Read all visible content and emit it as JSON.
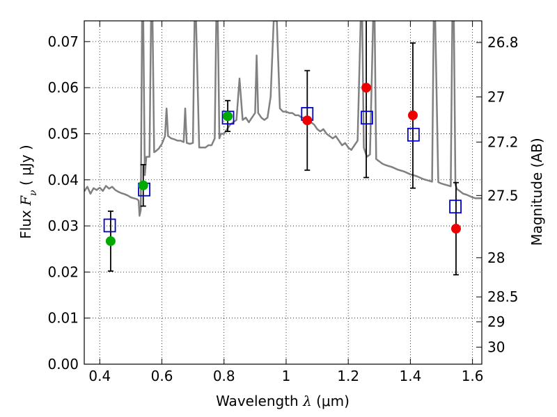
{
  "chart_data": {
    "type": "scatter",
    "title": "",
    "xlabel": {
      "prefix": "Wavelength  ",
      "symbol": "λ",
      "unit": " (μm)"
    },
    "ylabel": {
      "prefix": "Flux  ",
      "symbol": "F",
      "subscript": "ν",
      "unit": "  ( μJy )"
    },
    "y2label": "Magnitude (AB)",
    "xlim": [
      0.35,
      1.63
    ],
    "ylim": [
      0.0,
      0.0745
    ],
    "x_ticks": [
      0.4,
      0.6,
      0.8,
      1.0,
      1.2,
      1.4,
      1.6
    ],
    "x_tick_labels": [
      "0.4",
      "0.6",
      "0.8",
      "1",
      "1.2",
      "1.4",
      "1.6"
    ],
    "y_ticks": [
      0.0,
      0.01,
      0.02,
      0.03,
      0.04,
      0.05,
      0.06,
      0.07
    ],
    "y_tick_labels": [
      "0.00",
      "0.01",
      "0.02",
      "0.03",
      "0.04",
      "0.05",
      "0.06",
      "0.07"
    ],
    "y2_ticks": [
      {
        "label": "26.8",
        "flux": 0.0698
      },
      {
        "label": "27",
        "flux": 0.058
      },
      {
        "label": "27.2",
        "flux": 0.0482
      },
      {
        "label": "27.5",
        "flux": 0.0366
      },
      {
        "label": "28",
        "flux": 0.0231
      },
      {
        "label": "28.5",
        "flux": 0.0146
      },
      {
        "label": "29",
        "flux": 0.0092
      },
      {
        "label": "30",
        "flux": 0.0037
      }
    ],
    "grid": true,
    "series": [
      {
        "kind": "model_spectrum",
        "color": "#808080",
        "points": [
          [
            0.35,
            0.0375
          ],
          [
            0.36,
            0.0385
          ],
          [
            0.37,
            0.037
          ],
          [
            0.38,
            0.0382
          ],
          [
            0.39,
            0.0378
          ],
          [
            0.4,
            0.0383
          ],
          [
            0.41,
            0.0376
          ],
          [
            0.42,
            0.0387
          ],
          [
            0.43,
            0.0381
          ],
          [
            0.44,
            0.0385
          ],
          [
            0.45,
            0.0378
          ],
          [
            0.46,
            0.0374
          ],
          [
            0.47,
            0.0371
          ],
          [
            0.48,
            0.0369
          ],
          [
            0.49,
            0.0366
          ],
          [
            0.5,
            0.0362
          ],
          [
            0.51,
            0.036
          ],
          [
            0.52,
            0.0358
          ],
          [
            0.525,
            0.0355
          ],
          [
            0.528,
            0.0322
          ],
          [
            0.532,
            0.0335
          ],
          [
            0.536,
            0.0745
          ],
          [
            0.54,
            0.0745
          ],
          [
            0.545,
            0.041
          ],
          [
            0.55,
            0.045
          ],
          [
            0.56,
            0.045
          ],
          [
            0.565,
            0.0745
          ],
          [
            0.57,
            0.0745
          ],
          [
            0.575,
            0.046
          ],
          [
            0.58,
            0.0462
          ],
          [
            0.59,
            0.0468
          ],
          [
            0.6,
            0.0478
          ],
          [
            0.61,
            0.0495
          ],
          [
            0.615,
            0.0555
          ],
          [
            0.62,
            0.0495
          ],
          [
            0.63,
            0.049
          ],
          [
            0.64,
            0.0488
          ],
          [
            0.65,
            0.0485
          ],
          [
            0.66,
            0.0485
          ],
          [
            0.67,
            0.0482
          ],
          [
            0.675,
            0.0555
          ],
          [
            0.68,
            0.048
          ],
          [
            0.69,
            0.0478
          ],
          [
            0.7,
            0.048
          ],
          [
            0.705,
            0.0745
          ],
          [
            0.71,
            0.0745
          ],
          [
            0.72,
            0.047
          ],
          [
            0.73,
            0.047
          ],
          [
            0.74,
            0.047
          ],
          [
            0.75,
            0.0475
          ],
          [
            0.76,
            0.0475
          ],
          [
            0.77,
            0.049
          ],
          [
            0.775,
            0.0745
          ],
          [
            0.78,
            0.0745
          ],
          [
            0.785,
            0.049
          ],
          [
            0.79,
            0.05
          ],
          [
            0.8,
            0.05
          ],
          [
            0.81,
            0.051
          ],
          [
            0.82,
            0.052
          ],
          [
            0.83,
            0.0525
          ],
          [
            0.84,
            0.053
          ],
          [
            0.85,
            0.062
          ],
          [
            0.86,
            0.053
          ],
          [
            0.87,
            0.0535
          ],
          [
            0.88,
            0.0525
          ],
          [
            0.89,
            0.0535
          ],
          [
            0.9,
            0.0545
          ],
          [
            0.905,
            0.067
          ],
          [
            0.91,
            0.0545
          ],
          [
            0.92,
            0.0535
          ],
          [
            0.93,
            0.053
          ],
          [
            0.94,
            0.0535
          ],
          [
            0.95,
            0.058
          ],
          [
            0.96,
            0.0745
          ],
          [
            0.97,
            0.0745
          ],
          [
            0.98,
            0.0555
          ],
          [
            0.99,
            0.0548
          ],
          [
            1.0,
            0.0548
          ],
          [
            1.01,
            0.0545
          ],
          [
            1.02,
            0.0545
          ],
          [
            1.03,
            0.054
          ],
          [
            1.04,
            0.054
          ],
          [
            1.05,
            0.0535
          ],
          [
            1.06,
            0.0535
          ],
          [
            1.07,
            0.053
          ],
          [
            1.08,
            0.0525
          ],
          [
            1.09,
            0.052
          ],
          [
            1.1,
            0.051
          ],
          [
            1.11,
            0.0505
          ],
          [
            1.12,
            0.051
          ],
          [
            1.13,
            0.05
          ],
          [
            1.14,
            0.0495
          ],
          [
            1.15,
            0.049
          ],
          [
            1.16,
            0.0495
          ],
          [
            1.17,
            0.0485
          ],
          [
            1.18,
            0.0475
          ],
          [
            1.19,
            0.048
          ],
          [
            1.2,
            0.047
          ],
          [
            1.21,
            0.0465
          ],
          [
            1.22,
            0.0475
          ],
          [
            1.23,
            0.0485
          ],
          [
            1.24,
            0.0745
          ],
          [
            1.245,
            0.0745
          ],
          [
            1.25,
            0.047
          ],
          [
            1.26,
            0.045
          ],
          [
            1.27,
            0.0455
          ],
          [
            1.28,
            0.0745
          ],
          [
            1.285,
            0.0745
          ],
          [
            1.29,
            0.0445
          ],
          [
            1.3,
            0.044
          ],
          [
            1.31,
            0.0435
          ],
          [
            1.32,
            0.0432
          ],
          [
            1.33,
            0.043
          ],
          [
            1.34,
            0.0428
          ],
          [
            1.35,
            0.0425
          ],
          [
            1.36,
            0.0422
          ],
          [
            1.37,
            0.042
          ],
          [
            1.38,
            0.0418
          ],
          [
            1.39,
            0.0415
          ],
          [
            1.4,
            0.0412
          ],
          [
            1.41,
            0.041
          ],
          [
            1.42,
            0.0408
          ],
          [
            1.43,
            0.0405
          ],
          [
            1.44,
            0.0402
          ],
          [
            1.45,
            0.04
          ],
          [
            1.46,
            0.0398
          ],
          [
            1.47,
            0.0396
          ],
          [
            1.475,
            0.0745
          ],
          [
            1.48,
            0.0745
          ],
          [
            1.49,
            0.0395
          ],
          [
            1.5,
            0.0392
          ],
          [
            1.51,
            0.039
          ],
          [
            1.52,
            0.0388
          ],
          [
            1.53,
            0.0386
          ],
          [
            1.535,
            0.0745
          ],
          [
            1.54,
            0.0745
          ],
          [
            1.545,
            0.039
          ],
          [
            1.55,
            0.038
          ],
          [
            1.56,
            0.0375
          ],
          [
            1.57,
            0.037
          ],
          [
            1.58,
            0.0368
          ],
          [
            1.59,
            0.0365
          ],
          [
            1.6,
            0.0362
          ],
          [
            1.61,
            0.036
          ],
          [
            1.63,
            0.036
          ]
        ]
      },
      {
        "kind": "model_photometry",
        "marker": "open-square",
        "color": "#0000cc",
        "points": [
          [
            0.432,
            0.0301
          ],
          [
            0.543,
            0.0379
          ],
          [
            0.813,
            0.0535
          ],
          [
            1.068,
            0.0543
          ],
          [
            1.26,
            0.0535
          ],
          [
            1.41,
            0.0498
          ],
          [
            1.545,
            0.0342
          ]
        ]
      },
      {
        "kind": "observed",
        "marker": "filled-circle",
        "color": "#00aa00",
        "points": [
          {
            "x": 0.435,
            "y": 0.0267
          },
          {
            "x": 0.54,
            "y": 0.0388,
            "yerr_lo": 0.0343,
            "yerr_hi": 0.0433
          },
          {
            "x": 0.812,
            "y": 0.0538,
            "yerr_lo": 0.0505,
            "yerr_hi": 0.0572
          }
        ]
      },
      {
        "kind": "observed",
        "marker": "filled-circle",
        "color": "#ee0000",
        "points": [
          {
            "x": 1.068,
            "y": 0.0529,
            "yerr_lo": 0.0421,
            "yerr_hi": 0.0637
          },
          {
            "x": 1.258,
            "y": 0.06,
            "yerr_lo": 0.0405,
            "yerr_hi": 0.0745
          },
          {
            "x": 1.408,
            "y": 0.054,
            "yerr_lo": 0.0382,
            "yerr_hi": 0.0697
          },
          {
            "x": 1.547,
            "y": 0.0294,
            "yerr_lo": 0.0194,
            "yerr_hi": 0.0394
          }
        ]
      }
    ],
    "standalone_errorbars": [
      {
        "x": 0.435,
        "yerr_lo": 0.0202,
        "yerr_hi": 0.0332
      }
    ]
  }
}
